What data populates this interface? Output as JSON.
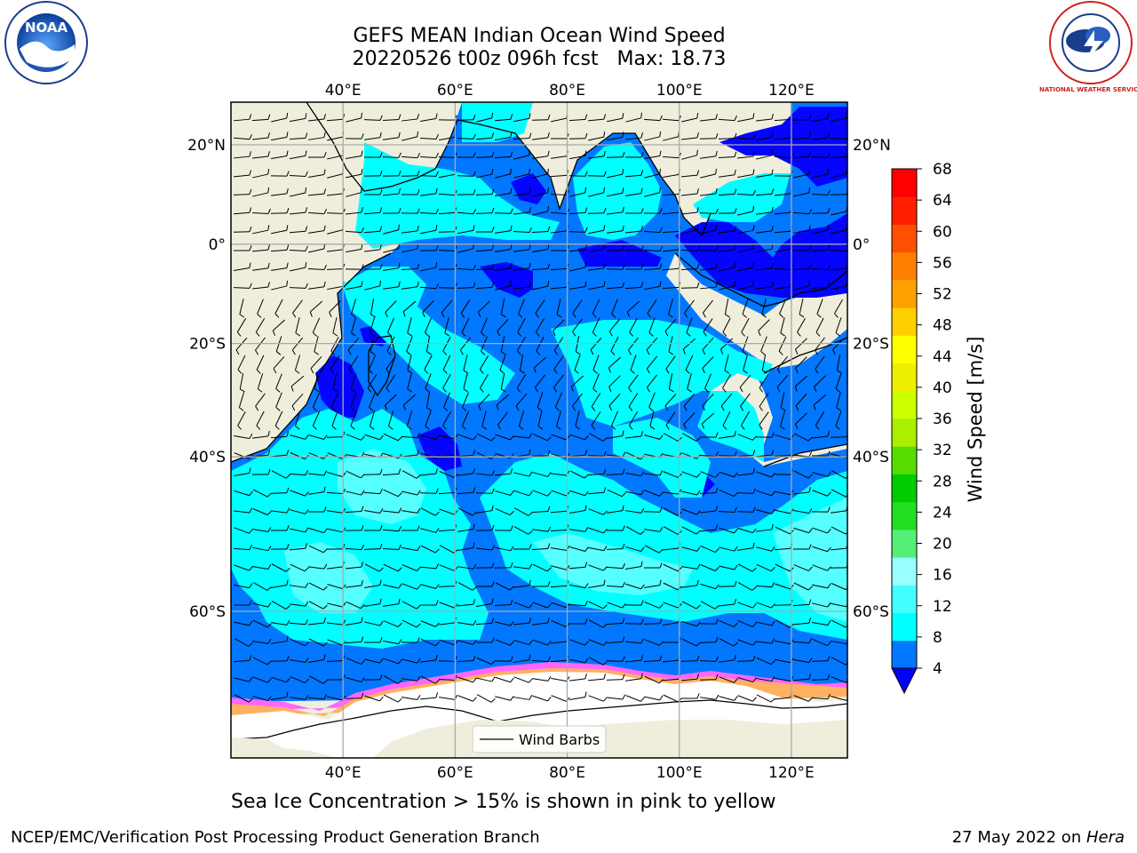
{
  "header": {
    "title_line1": "GEFS MEAN Indian Ocean Wind Speed",
    "title_line2": "20220526 t00z 096h fcst   Max: 18.73"
  },
  "logos": {
    "left_logo_text": "NOAA",
    "right_logo_text": "NATIONAL WEATHER SERVICE"
  },
  "map": {
    "lon_ticks": [
      "40°E",
      "60°E",
      "80°E",
      "100°E",
      "120°E"
    ],
    "lat_ticks": [
      "20°N",
      "0°",
      "20°S",
      "40°S",
      "60°S"
    ],
    "lon_values": [
      40,
      60,
      80,
      100,
      120
    ],
    "lat_values": [
      20,
      0,
      -20,
      -40,
      -60
    ],
    "extent": {
      "lon_min": 20,
      "lon_max": 130,
      "lat_min": -72,
      "lat_max": 28
    },
    "legend_label": "Wind Barbs",
    "colors": {
      "land": "#efeedd",
      "ice": "#ffffff",
      "speed_4": "#0404ff",
      "speed_8": "#0277ff",
      "speed_12": "#02ffff",
      "speed_16": "#56ffff",
      "ice_pink": "#ff66ff",
      "ice_orange": "#ffb060"
    }
  },
  "colorbar": {
    "label": "Wind Speed [m/s]",
    "ticks": [
      "4",
      "8",
      "12",
      "16",
      "20",
      "24",
      "28",
      "32",
      "36",
      "40",
      "44",
      "48",
      "52",
      "56",
      "60",
      "64",
      "68"
    ],
    "colors": [
      "#0277ff",
      "#00ffff",
      "#44ffff",
      "#99ffff",
      "#55ee77",
      "#22dd22",
      "#00cc00",
      "#55dd00",
      "#aaee00",
      "#ccff00",
      "#eeee00",
      "#ffff00",
      "#ffd000",
      "#ffa000",
      "#ff8000",
      "#ff5000",
      "#ff2000",
      "#ff0000"
    ],
    "under_color": "#0000ff"
  },
  "footer": {
    "note": "Sea Ice Concentration > 15% is shown in pink to yellow",
    "left": "NCEP/EMC/Verification Post Processing Product Generation Branch",
    "right_prefix": "27 May 2022 on ",
    "right_italic": "Hera"
  }
}
